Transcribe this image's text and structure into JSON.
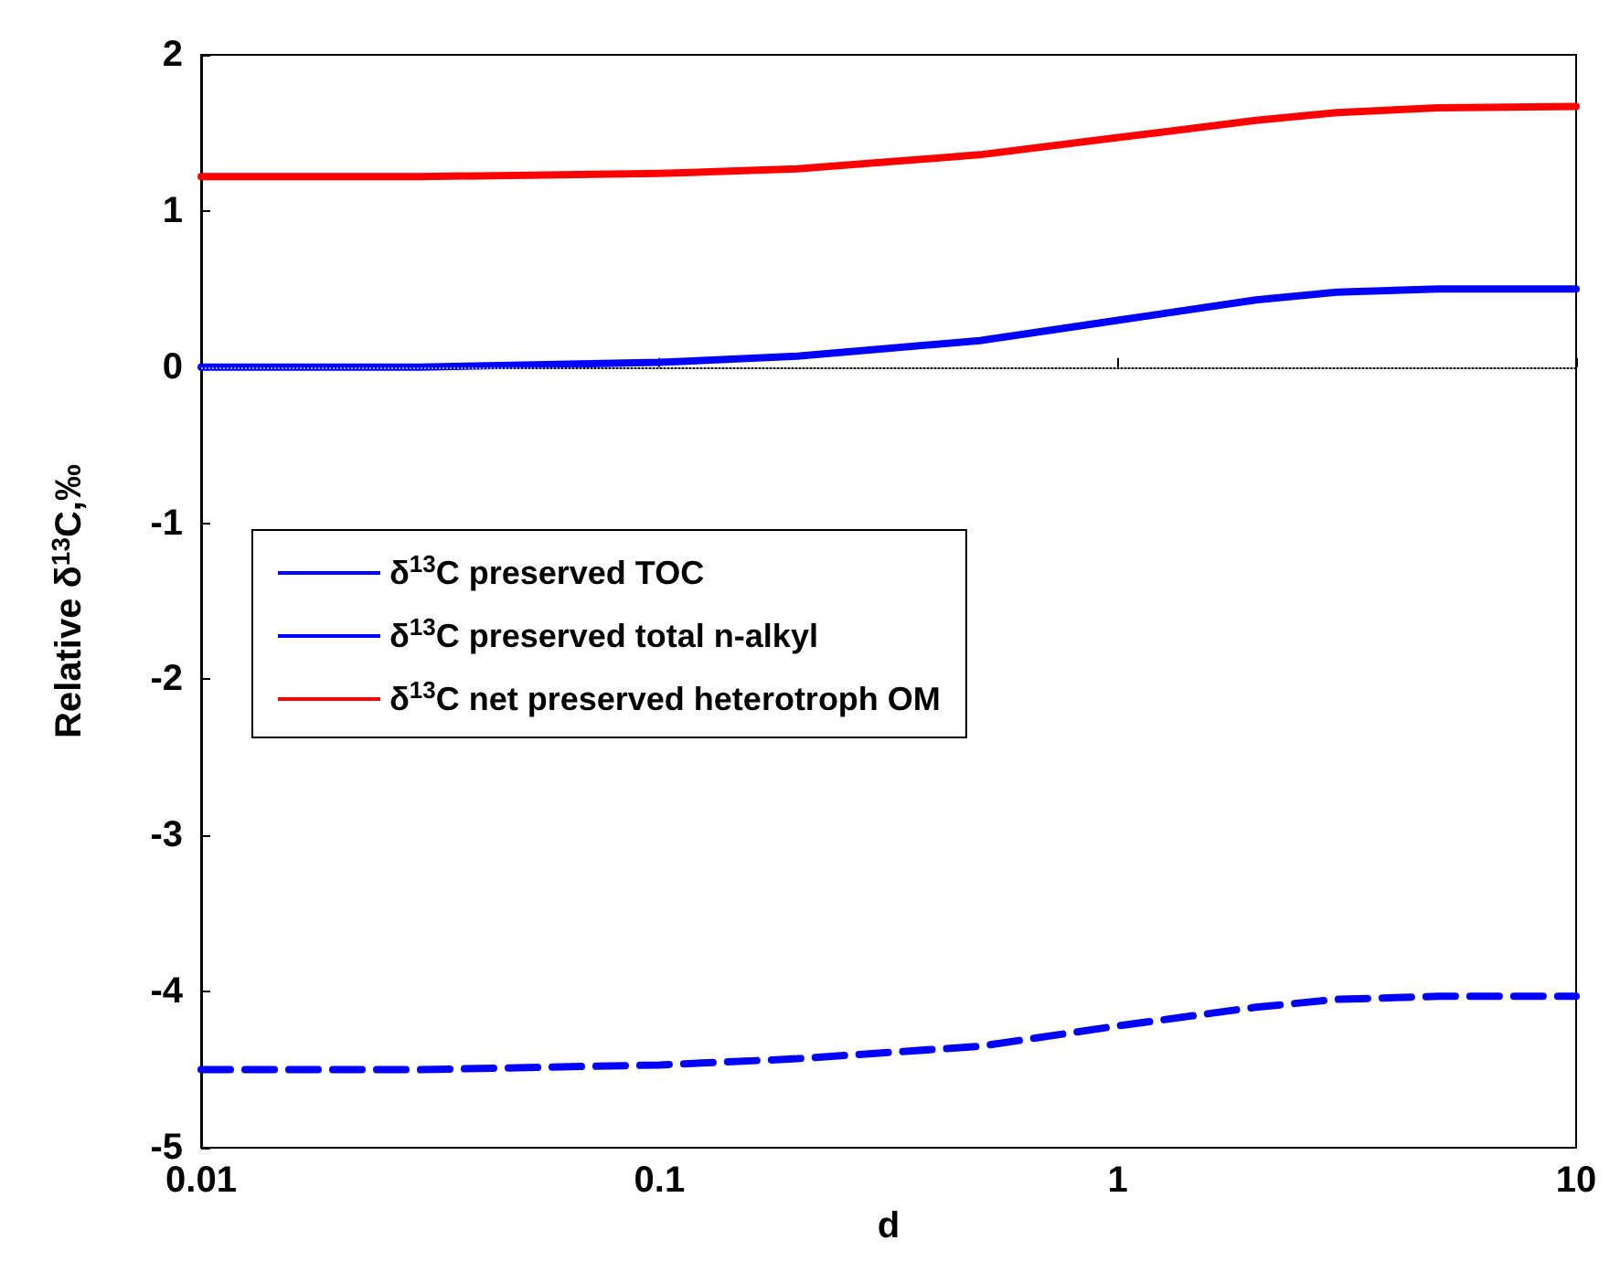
{
  "chart_data": {
    "type": "line",
    "xlabel": "d",
    "ylabel": "Relative δ$^{13}$C,‰",
    "x": [
      0.01,
      0.03,
      0.1,
      0.2,
      0.5,
      1,
      2,
      3,
      5,
      10
    ],
    "series": [
      {
        "name": "δ$^{13}$C preserved TOC",
        "color": "#0000ff",
        "line_style": "solid",
        "values": [
          0,
          0,
          0.03,
          0.07,
          0.17,
          0.3,
          0.43,
          0.48,
          0.5,
          0.5
        ]
      },
      {
        "name": "δ$^{13}$C preserved total n-alkyl",
        "color": "#0000ff",
        "line_style": "dashed",
        "values": [
          -4.5,
          -4.5,
          -4.47,
          -4.43,
          -4.35,
          -4.22,
          -4.1,
          -4.05,
          -4.03,
          -4.03
        ]
      },
      {
        "name": "δ$^{13}$C net preserved heterotroph OM",
        "color": "#ff0000",
        "line_style": "solid",
        "values": [
          1.22,
          1.22,
          1.24,
          1.27,
          1.36,
          1.47,
          1.58,
          1.63,
          1.66,
          1.67
        ]
      }
    ],
    "log": "x",
    "xlim": [
      0.01,
      10
    ],
    "xticks": [
      0.01,
      0.1,
      1,
      10
    ],
    "ylim": [
      -5,
      2
    ],
    "yticks": [
      -5,
      -4,
      -3,
      -2,
      -1,
      0,
      1,
      2
    ],
    "ref_lines": [
      {
        "axis": "y",
        "value": 0,
        "color": "#999999",
        "line_style": "dotted"
      }
    ],
    "grid": false,
    "legend": "left",
    "marker": "none"
  }
}
